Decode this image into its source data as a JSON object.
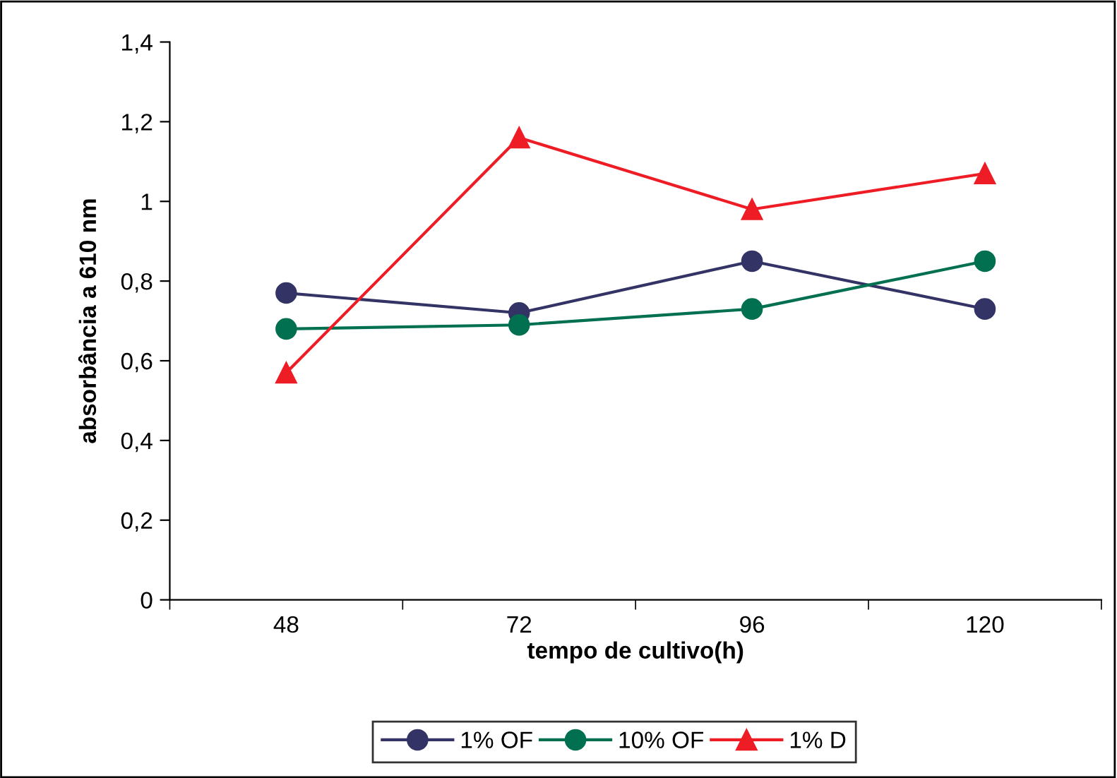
{
  "chart_data": {
    "type": "line",
    "xlabel": "tempo de cultivo(h)",
    "ylabel": "absorbância a 610 nm",
    "categories": [
      "48",
      "72",
      "96",
      "120"
    ],
    "series": [
      {
        "name": "1% OF",
        "color": "#333366",
        "marker": "circle",
        "values": [
          0.77,
          0.72,
          0.85,
          0.73
        ]
      },
      {
        "name": "10% OF",
        "color": "#007050",
        "marker": "circle",
        "values": [
          0.68,
          0.69,
          0.73,
          0.85
        ]
      },
      {
        "name": "1% D",
        "color": "#ee1c25",
        "marker": "triangle",
        "values": [
          0.57,
          1.16,
          0.98,
          1.07
        ]
      }
    ],
    "ylim": [
      0,
      1.4
    ],
    "yticks": [
      0,
      {
        "value": 0.2,
        "label": "0,2"
      },
      {
        "value": 0.4,
        "label": "0,4"
      },
      {
        "value": 0.6,
        "label": "0,6"
      },
      {
        "value": 0.8,
        "label": "0,8"
      },
      1,
      {
        "value": 1.2,
        "label": "1,2"
      },
      {
        "value": 1.4,
        "label": "1,4"
      }
    ],
    "grid": false,
    "legend": "bottom",
    "line_style": "solid"
  }
}
